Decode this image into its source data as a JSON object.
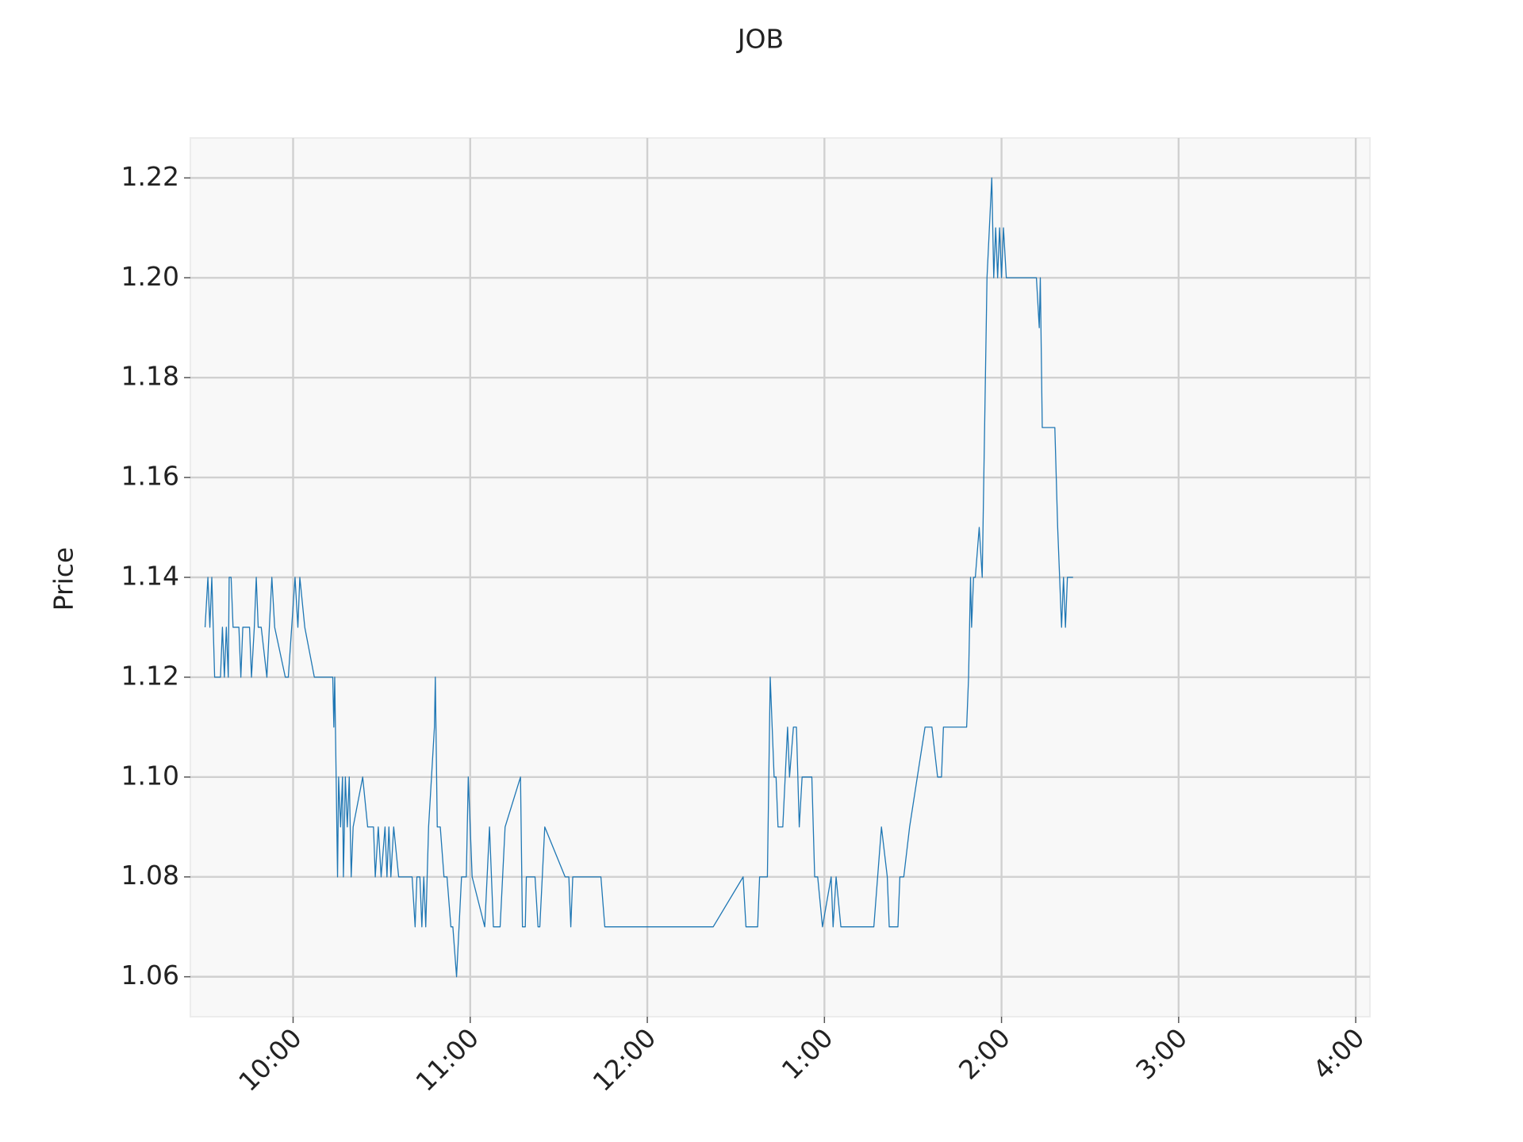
{
  "chart_data": {
    "type": "line",
    "title": "JOB",
    "ylabel": "Price",
    "color": "#1f77b4",
    "grid": true,
    "x": [
      9.503,
      9.519,
      9.53,
      9.541,
      9.557,
      9.59,
      9.601,
      9.612,
      9.623,
      9.634,
      9.639,
      9.65,
      9.661,
      9.694,
      9.705,
      9.716,
      9.754,
      9.765,
      9.781,
      9.792,
      9.803,
      9.82,
      9.852,
      9.88,
      9.896,
      9.956,
      9.973,
      10.011,
      10.027,
      10.038,
      10.066,
      10.12,
      10.224,
      10.23,
      10.235,
      10.251,
      10.257,
      10.268,
      10.279,
      10.284,
      10.295,
      10.306,
      10.317,
      10.328,
      10.339,
      10.393,
      10.421,
      10.454,
      10.464,
      10.481,
      10.497,
      10.519,
      10.53,
      10.541,
      10.552,
      10.568,
      10.596,
      10.672,
      10.689,
      10.699,
      10.716,
      10.727,
      10.738,
      10.749,
      10.765,
      10.798,
      10.803,
      10.814,
      10.831,
      10.852,
      10.869,
      10.891,
      10.902,
      10.923,
      10.951,
      10.978,
      10.989,
      11.011,
      11.082,
      11.109,
      11.131,
      11.169,
      11.197,
      11.284,
      11.295,
      11.311,
      11.317,
      11.366,
      11.383,
      11.393,
      11.421,
      11.536,
      11.557,
      11.568,
      11.579,
      11.738,
      11.76,
      12.372,
      12.541,
      12.557,
      12.623,
      12.634,
      12.678,
      12.694,
      12.705,
      12.716,
      12.727,
      12.738,
      12.765,
      12.792,
      12.803,
      12.825,
      12.842,
      12.858,
      12.874,
      12.929,
      12.945,
      12.962,
      12.989,
      13.038,
      13.049,
      13.066,
      13.093,
      13.279,
      13.322,
      13.355,
      13.366,
      13.415,
      13.426,
      13.448,
      13.481,
      13.568,
      13.607,
      13.639,
      13.661,
      13.672,
      13.803,
      13.814,
      13.825,
      13.831,
      13.842,
      13.852,
      13.874,
      13.891,
      13.918,
      13.945,
      13.956,
      13.967,
      13.978,
      13.989,
      14.0,
      14.011,
      14.027,
      14.197,
      14.213,
      14.219,
      14.23,
      14.301,
      14.317,
      14.328,
      14.339,
      14.35,
      14.361,
      14.372,
      14.404
    ],
    "values": [
      1.13,
      1.14,
      1.13,
      1.14,
      1.12,
      1.12,
      1.13,
      1.12,
      1.13,
      1.12,
      1.14,
      1.14,
      1.13,
      1.13,
      1.12,
      1.13,
      1.13,
      1.12,
      1.13,
      1.14,
      1.13,
      1.13,
      1.12,
      1.14,
      1.13,
      1.12,
      1.12,
      1.14,
      1.13,
      1.14,
      1.13,
      1.12,
      1.12,
      1.11,
      1.12,
      1.08,
      1.1,
      1.09,
      1.1,
      1.08,
      1.1,
      1.09,
      1.1,
      1.08,
      1.09,
      1.1,
      1.09,
      1.09,
      1.08,
      1.09,
      1.08,
      1.09,
      1.08,
      1.09,
      1.08,
      1.09,
      1.08,
      1.08,
      1.07,
      1.08,
      1.08,
      1.07,
      1.08,
      1.07,
      1.09,
      1.11,
      1.12,
      1.09,
      1.09,
      1.08,
      1.08,
      1.07,
      1.07,
      1.06,
      1.08,
      1.08,
      1.1,
      1.08,
      1.07,
      1.09,
      1.07,
      1.07,
      1.09,
      1.1,
      1.07,
      1.07,
      1.08,
      1.08,
      1.07,
      1.07,
      1.09,
      1.08,
      1.08,
      1.07,
      1.08,
      1.08,
      1.07,
      1.07,
      1.08,
      1.07,
      1.07,
      1.08,
      1.08,
      1.12,
      1.11,
      1.1,
      1.1,
      1.09,
      1.09,
      1.11,
      1.1,
      1.11,
      1.11,
      1.09,
      1.1,
      1.1,
      1.08,
      1.08,
      1.07,
      1.08,
      1.07,
      1.08,
      1.07,
      1.07,
      1.09,
      1.08,
      1.07,
      1.07,
      1.08,
      1.08,
      1.09,
      1.11,
      1.11,
      1.1,
      1.1,
      1.11,
      1.11,
      1.12,
      1.14,
      1.13,
      1.14,
      1.14,
      1.15,
      1.14,
      1.2,
      1.22,
      1.2,
      1.21,
      1.2,
      1.21,
      1.2,
      1.21,
      1.2,
      1.2,
      1.19,
      1.2,
      1.17,
      1.17,
      1.15,
      1.14,
      1.13,
      1.14,
      1.13,
      1.14,
      1.14
    ],
    "xlim": [
      9.42,
      16.08
    ],
    "xticks": [
      {
        "value": 10,
        "label": "10:00"
      },
      {
        "value": 11,
        "label": "11:00"
      },
      {
        "value": 12,
        "label": "12:00"
      },
      {
        "value": 13,
        "label": "1:00"
      },
      {
        "value": 14,
        "label": "2:00"
      },
      {
        "value": 15,
        "label": "3:00"
      },
      {
        "value": 16,
        "label": "4:00"
      }
    ],
    "ylim": [
      1.052,
      1.228
    ],
    "yticks": [
      1.06,
      1.08,
      {
        "value": 1.1,
        "label": "1.10"
      },
      1.12,
      1.14,
      1.16,
      1.18,
      {
        "value": 1.2,
        "label": "1.20"
      },
      1.22
    ]
  }
}
